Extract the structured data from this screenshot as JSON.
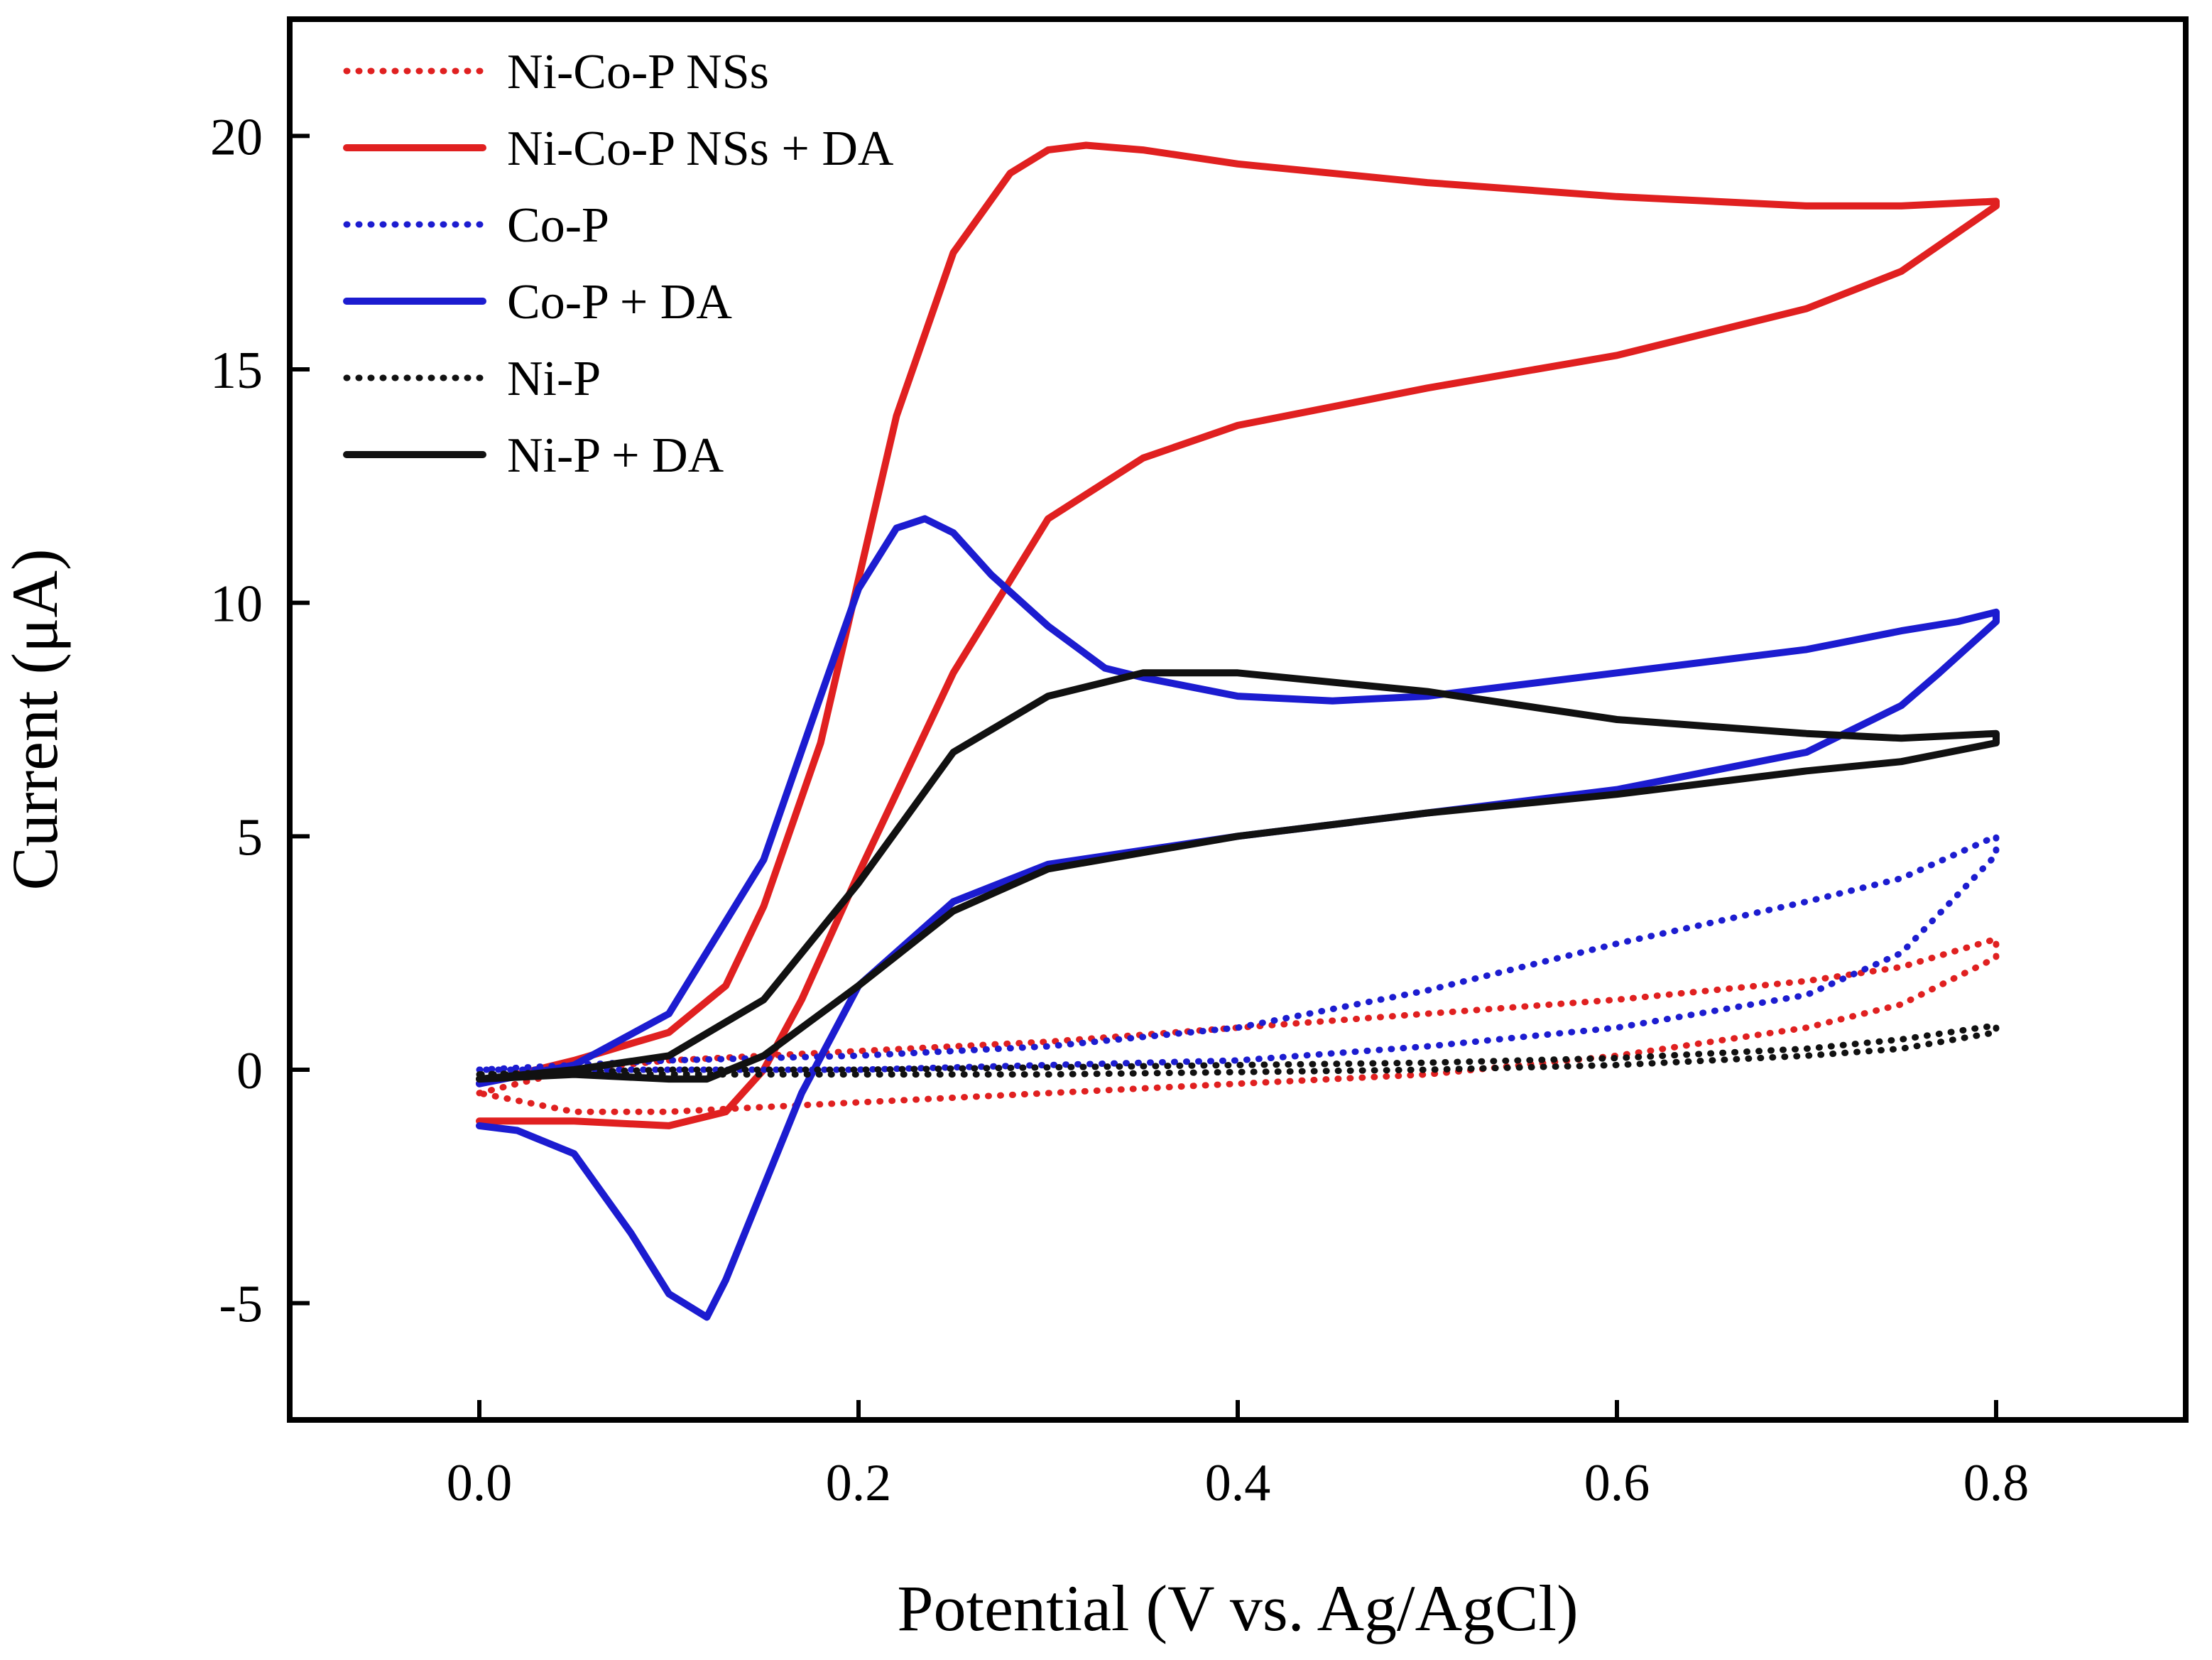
{
  "chart_data": {
    "type": "line",
    "title": "",
    "xlabel": "Potential (V vs. Ag/AgCl)",
    "ylabel": "Current (μA)",
    "xlim": [
      -0.1,
      0.9
    ],
    "ylim": [
      -7.5,
      22.5
    ],
    "xticks": [
      0.0,
      0.2,
      0.4,
      0.6,
      0.8
    ],
    "xtick_labels": [
      "0.0",
      "0.2",
      "0.4",
      "0.6",
      "0.8"
    ],
    "yticks": [
      -5,
      0,
      5,
      10,
      15,
      20
    ],
    "ytick_labels": [
      "-5",
      "0",
      "5",
      "10",
      "15",
      "20"
    ],
    "grid": false,
    "legend_position": "top-left",
    "series": [
      {
        "name": "Ni-Co-P NSs",
        "color": "#e02020",
        "dash": "dotted",
        "x": [
          0.0,
          0.05,
          0.1,
          0.2,
          0.3,
          0.4,
          0.5,
          0.6,
          0.7,
          0.75,
          0.8,
          0.8,
          0.75,
          0.7,
          0.6,
          0.5,
          0.4,
          0.3,
          0.2,
          0.1,
          0.05,
          0.0
        ],
        "y": [
          -0.5,
          0.0,
          0.2,
          0.4,
          0.6,
          0.9,
          1.2,
          1.5,
          1.9,
          2.2,
          2.8,
          2.4,
          1.4,
          0.9,
          0.3,
          -0.1,
          -0.3,
          -0.5,
          -0.7,
          -0.9,
          -0.9,
          -0.5
        ]
      },
      {
        "name": "Ni-Co-P NSs + DA",
        "color": "#e02020",
        "dash": "solid",
        "x": [
          0.0,
          0.05,
          0.1,
          0.13,
          0.15,
          0.18,
          0.2,
          0.22,
          0.25,
          0.28,
          0.3,
          0.32,
          0.35,
          0.4,
          0.5,
          0.6,
          0.7,
          0.75,
          0.8,
          0.8,
          0.75,
          0.7,
          0.6,
          0.5,
          0.4,
          0.35,
          0.3,
          0.25,
          0.2,
          0.17,
          0.15,
          0.13,
          0.1,
          0.05,
          0.0
        ],
        "y": [
          -0.3,
          0.2,
          0.8,
          1.8,
          3.5,
          7.0,
          10.5,
          14.0,
          17.5,
          19.2,
          19.7,
          19.8,
          19.7,
          19.4,
          19.0,
          18.7,
          18.5,
          18.5,
          18.6,
          18.5,
          17.1,
          16.3,
          15.3,
          14.6,
          13.8,
          13.1,
          11.8,
          8.5,
          4.2,
          1.5,
          0.0,
          -0.9,
          -1.2,
          -1.1,
          -1.1
        ]
      },
      {
        "name": "Co-P",
        "color": "#1c1cd0",
        "dash": "dotted",
        "x": [
          0.0,
          0.05,
          0.1,
          0.2,
          0.3,
          0.4,
          0.5,
          0.6,
          0.7,
          0.75,
          0.8,
          0.8,
          0.75,
          0.7,
          0.6,
          0.5,
          0.4,
          0.3,
          0.2,
          0.1,
          0.05,
          0.0
        ],
        "y": [
          0.0,
          0.1,
          0.2,
          0.3,
          0.5,
          0.9,
          1.7,
          2.7,
          3.6,
          4.1,
          5.0,
          4.6,
          2.5,
          1.6,
          0.9,
          0.5,
          0.2,
          0.1,
          0.0,
          0.0,
          0.0,
          0.0
        ]
      },
      {
        "name": "Co-P + DA",
        "color": "#1c1cd0",
        "dash": "solid",
        "x": [
          0.0,
          0.05,
          0.1,
          0.15,
          0.18,
          0.2,
          0.22,
          0.235,
          0.25,
          0.27,
          0.3,
          0.33,
          0.35,
          0.4,
          0.45,
          0.5,
          0.6,
          0.7,
          0.75,
          0.78,
          0.8,
          0.8,
          0.77,
          0.75,
          0.7,
          0.6,
          0.5,
          0.4,
          0.3,
          0.25,
          0.2,
          0.17,
          0.15,
          0.13,
          0.12,
          0.1,
          0.08,
          0.05,
          0.02,
          0.0
        ],
        "y": [
          -0.3,
          0.1,
          1.2,
          4.5,
          8.0,
          10.3,
          11.6,
          11.8,
          11.5,
          10.6,
          9.5,
          8.6,
          8.4,
          8.0,
          7.9,
          8.0,
          8.5,
          9.0,
          9.4,
          9.6,
          9.8,
          9.6,
          8.5,
          7.8,
          6.8,
          6.0,
          5.5,
          5.0,
          4.4,
          3.6,
          1.8,
          -0.5,
          -2.5,
          -4.5,
          -5.3,
          -4.8,
          -3.5,
          -1.8,
          -1.3,
          -1.2
        ]
      },
      {
        "name": "Ni-P",
        "color": "#111111",
        "dash": "dotted",
        "x": [
          0.0,
          0.1,
          0.2,
          0.3,
          0.4,
          0.5,
          0.6,
          0.7,
          0.75,
          0.8,
          0.8,
          0.75,
          0.7,
          0.6,
          0.5,
          0.4,
          0.3,
          0.2,
          0.1,
          0.0
        ],
        "y": [
          -0.1,
          0.0,
          0.0,
          0.05,
          0.1,
          0.15,
          0.25,
          0.45,
          0.65,
          0.95,
          0.8,
          0.45,
          0.3,
          0.1,
          0.0,
          -0.05,
          -0.1,
          -0.1,
          -0.1,
          -0.1
        ]
      },
      {
        "name": "Ni-P + DA",
        "color": "#111111",
        "dash": "solid",
        "x": [
          0.0,
          0.05,
          0.1,
          0.15,
          0.2,
          0.25,
          0.3,
          0.35,
          0.4,
          0.5,
          0.6,
          0.7,
          0.75,
          0.8,
          0.8,
          0.75,
          0.7,
          0.6,
          0.5,
          0.4,
          0.3,
          0.25,
          0.2,
          0.15,
          0.12,
          0.1,
          0.05,
          0.0
        ],
        "y": [
          -0.2,
          0.0,
          0.3,
          1.5,
          4.0,
          6.8,
          8.0,
          8.5,
          8.5,
          8.1,
          7.5,
          7.2,
          7.1,
          7.2,
          7.0,
          6.6,
          6.4,
          5.9,
          5.5,
          5.0,
          4.3,
          3.4,
          1.8,
          0.3,
          -0.2,
          -0.2,
          -0.1,
          -0.2
        ]
      }
    ]
  }
}
